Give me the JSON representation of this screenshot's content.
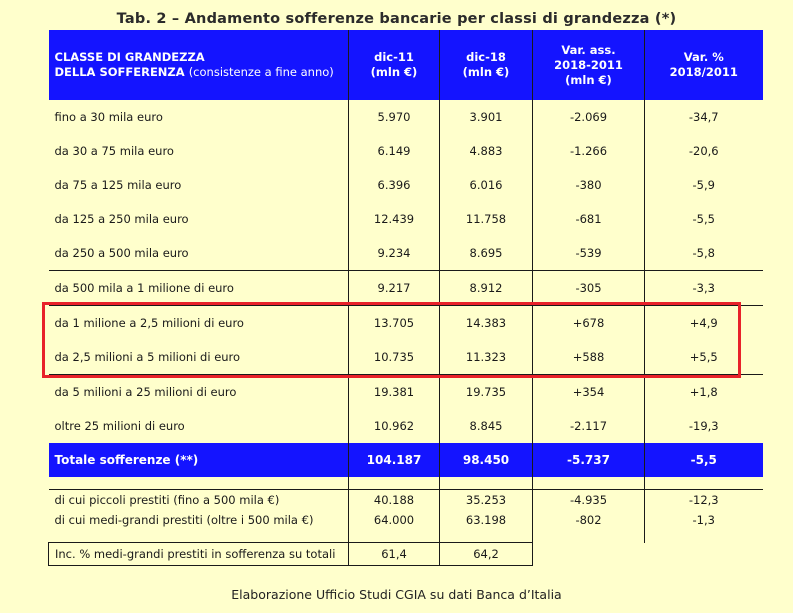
{
  "title": "Tab. 2 – Andamento sofferenze bancarie per classi di grandezza (*)",
  "header": {
    "col0_line1": "CLASSE DI GRANDEZZA",
    "col0_line2": "DELLA SOFFERENZA",
    "col0_note": "(consistenze a fine anno)",
    "col1_line1": "dic-11",
    "col1_line2": "(mln €)",
    "col2_line1": "dic-18",
    "col2_line2": "(mln €)",
    "col3_line1": "Var. ass.",
    "col3_line2": "2018-2011",
    "col3_line3": "(mln €)",
    "col4_line1": "Var. %",
    "col4_line2": "2018/2011"
  },
  "rows": [
    {
      "label": "fino a 30 mila euro",
      "dic11": "5.970",
      "dic18": "3.901",
      "var_ass": "-2.069",
      "var_pct": "-34,7"
    },
    {
      "label": "da 30 a 75 mila euro",
      "dic11": "6.149",
      "dic18": "4.883",
      "var_ass": "-1.266",
      "var_pct": "-20,6"
    },
    {
      "label": "da 75 a 125 mila euro",
      "dic11": "6.396",
      "dic18": "6.016",
      "var_ass": "-380",
      "var_pct": "-5,9"
    },
    {
      "label": "da 125 a 250 mila euro",
      "dic11": "12.439",
      "dic18": "11.758",
      "var_ass": "-681",
      "var_pct": "-5,5"
    },
    {
      "label": "da 250 a 500 mila euro",
      "dic11": "9.234",
      "dic18": "8.695",
      "var_ass": "-539",
      "var_pct": "-5,8"
    },
    {
      "label": "da 500 mila a 1 milione di euro",
      "dic11": "9.217",
      "dic18": "8.912",
      "var_ass": "-305",
      "var_pct": "-3,3"
    },
    {
      "label": "da 1 milione a 2,5 milioni di euro",
      "dic11": "13.705",
      "dic18": "14.383",
      "var_ass": "+678",
      "var_pct": "+4,9"
    },
    {
      "label": "da 2,5 milioni a 5 milioni di euro",
      "dic11": "10.735",
      "dic18": "11.323",
      "var_ass": "+588",
      "var_pct": "+5,5"
    },
    {
      "label": "da 5 milioni a 25 milioni di euro",
      "dic11": "19.381",
      "dic18": "19.735",
      "var_ass": "+354",
      "var_pct": "+1,8"
    },
    {
      "label": "oltre 25 milioni di euro",
      "dic11": "10.962",
      "dic18": "8.845",
      "var_ass": "-2.117",
      "var_pct": "-19,3"
    }
  ],
  "total": {
    "label": "Totale sofferenze (**)",
    "dic11": "104.187",
    "dic18": "98.450",
    "var_ass": "-5.737",
    "var_pct": "-5,5"
  },
  "subtotals": [
    {
      "label": "di cui piccoli prestiti (fino a 500 mila €)",
      "dic11": "40.188",
      "dic18": "35.253",
      "var_ass": "-4.935",
      "var_pct": "-12,3"
    },
    {
      "label": "di cui medi-grandi prestiti (oltre i 500 mila €)",
      "dic11": "64.000",
      "dic18": "63.198",
      "var_ass": "-802",
      "var_pct": "-1,3"
    }
  ],
  "incidence": {
    "label": "Inc. % medi-grandi prestiti in sofferenza su totali",
    "dic11": "61,4",
    "dic18": "64,2"
  },
  "footer": "Elaborazione Ufficio Studi CGIA su dati Banca d’Italia",
  "colors": {
    "header_bg": "#1414ff",
    "page_bg": "#ffffcc",
    "highlight_border": "#e8222a"
  }
}
